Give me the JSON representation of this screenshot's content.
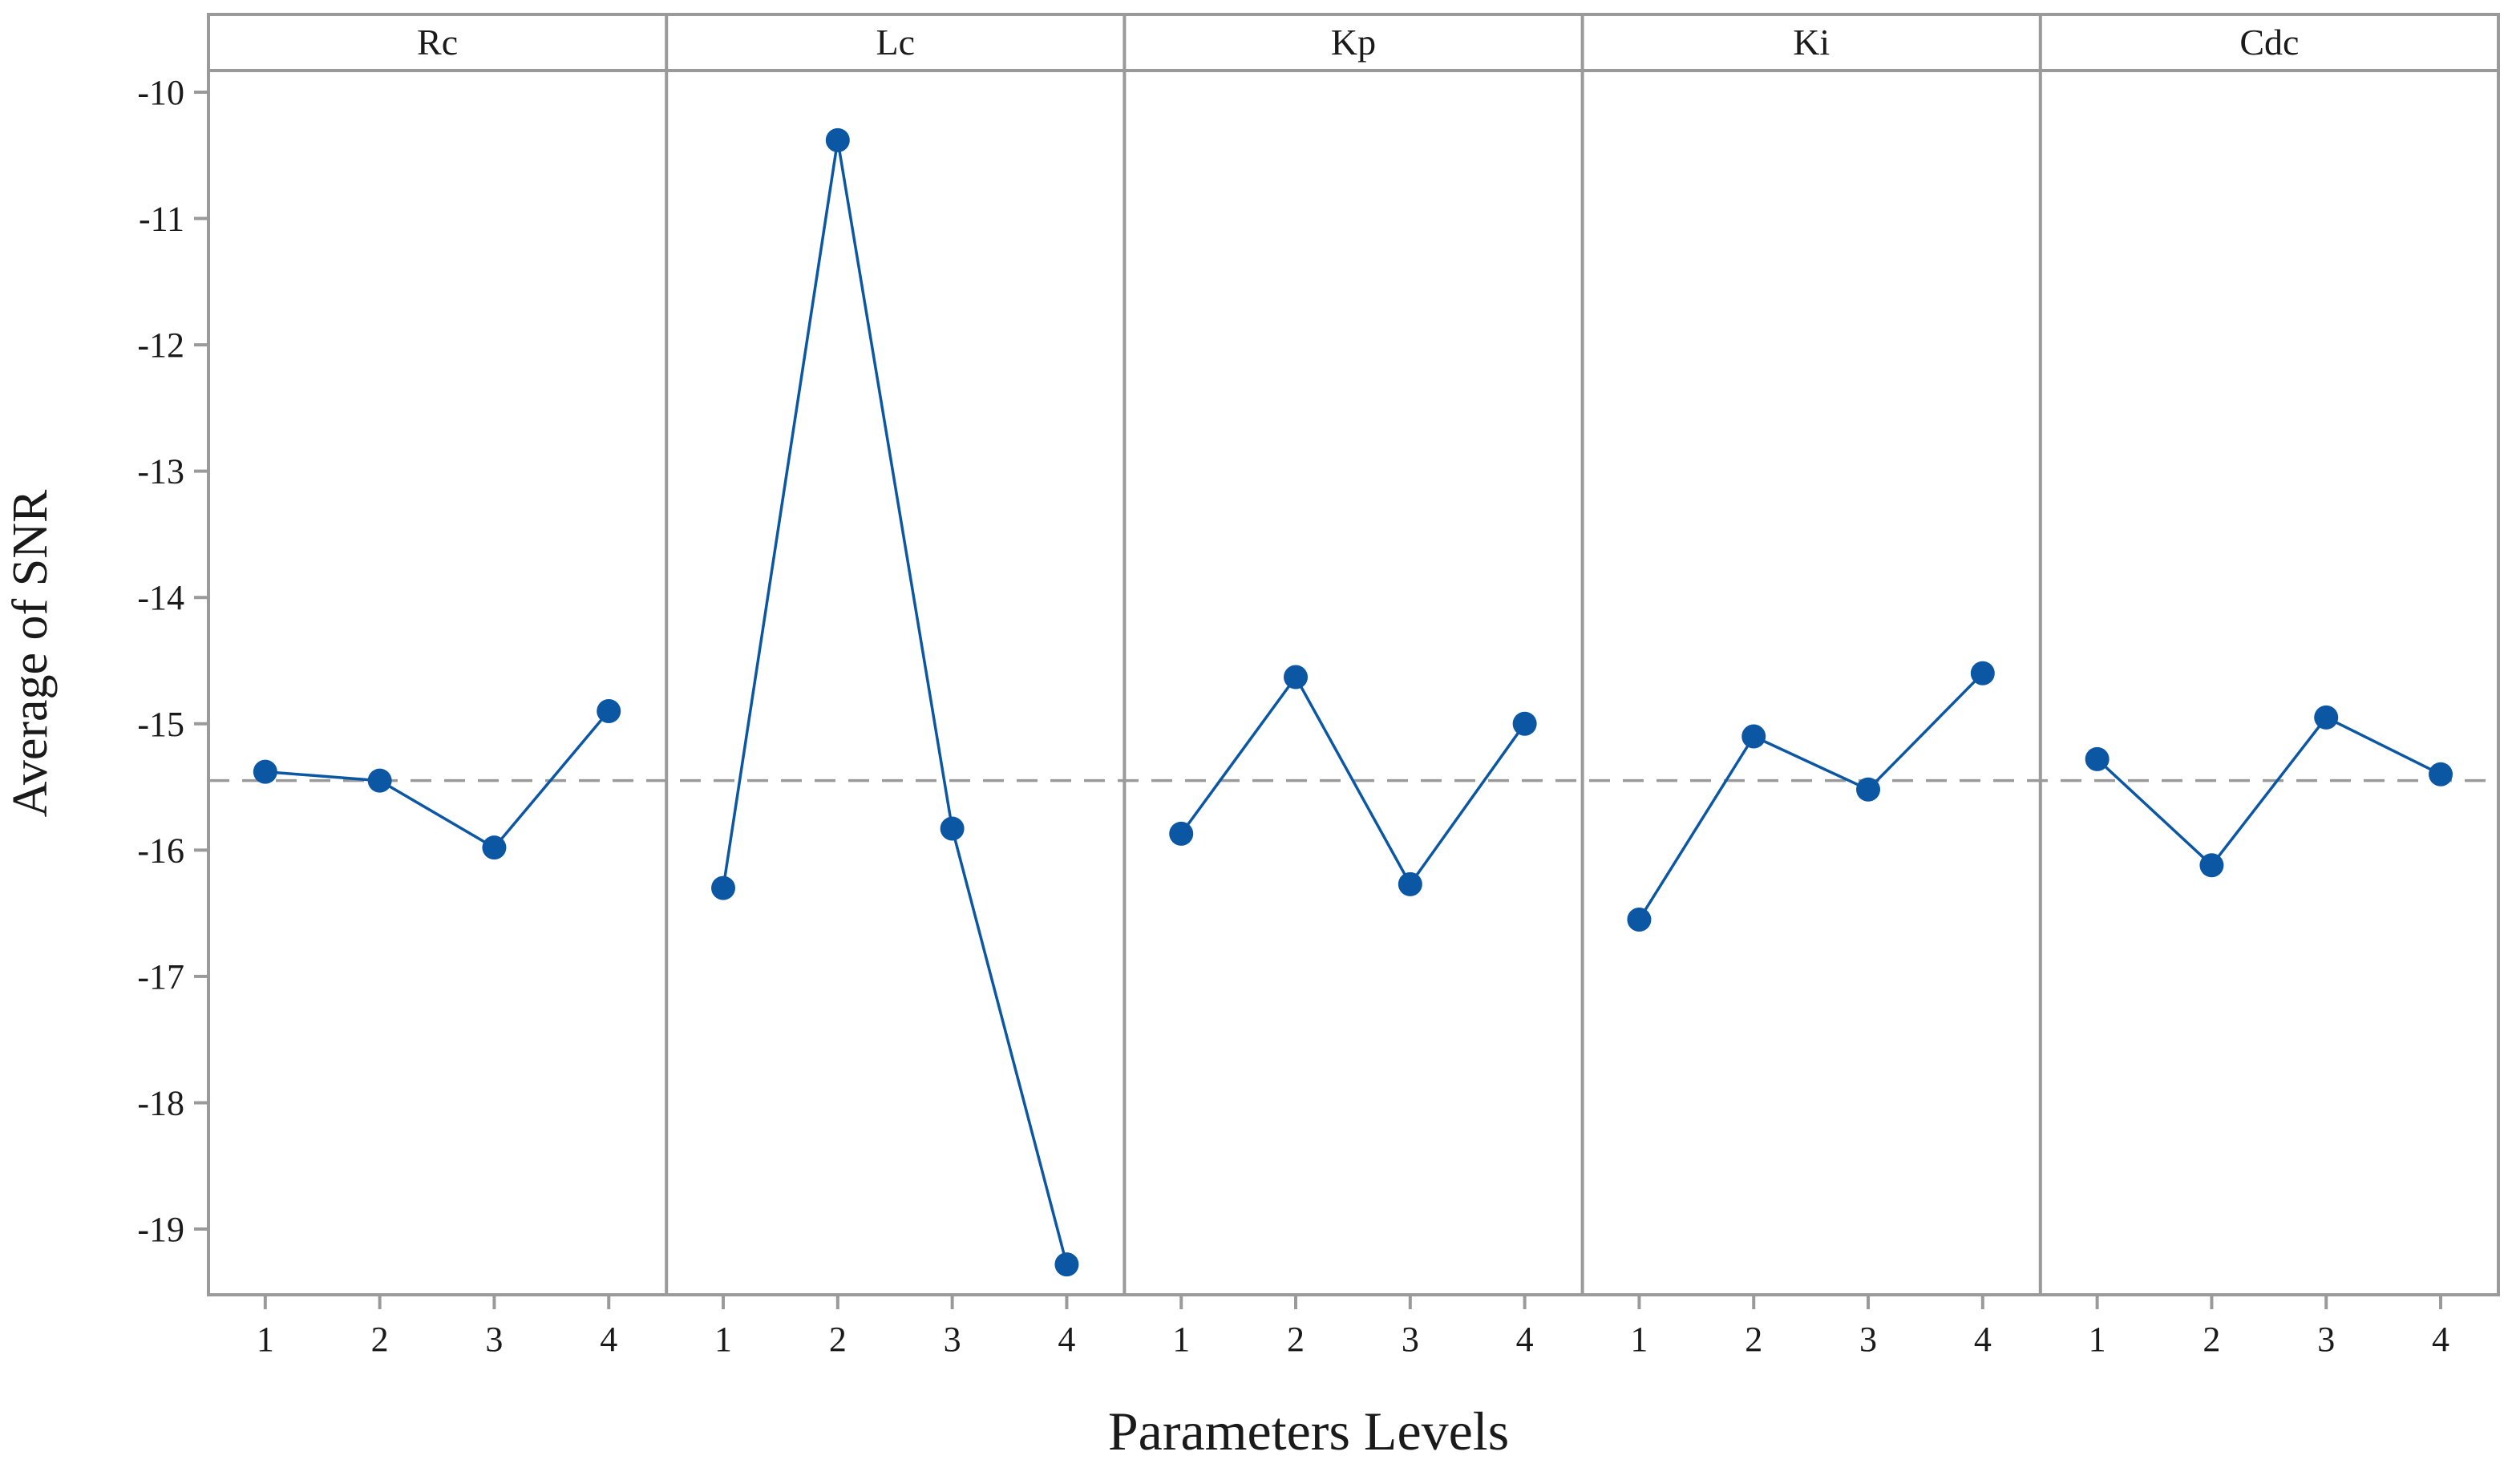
{
  "chart_data": {
    "type": "line",
    "ylabel": "Average of SNR",
    "xlabel": "Parameters Levels",
    "ylim": [
      -19.8,
      -9.8
    ],
    "y_ticks": [
      -10,
      -11,
      -12,
      -13,
      -14,
      -15,
      -16,
      -17,
      -18,
      -19
    ],
    "categories": [
      "1",
      "2",
      "3",
      "4"
    ],
    "reference_line": {
      "value": -15.45,
      "style": "dashed"
    },
    "grid": false,
    "colors": {
      "series": "#0B57A4",
      "panel_border": "#9a9a9a",
      "reference": "#9a9a9a",
      "text": "#1a1a1a"
    },
    "panels": [
      {
        "name": "Rc",
        "values": [
          -15.38,
          -15.45,
          -15.98,
          -14.9
        ]
      },
      {
        "name": "Lc",
        "values": [
          -16.3,
          -10.38,
          -15.83,
          -19.28
        ]
      },
      {
        "name": "Kp",
        "values": [
          -15.87,
          -14.63,
          -16.27,
          -15.0
        ]
      },
      {
        "name": "Ki",
        "values": [
          -16.55,
          -15.1,
          -15.52,
          -14.6
        ]
      },
      {
        "name": "Cdc",
        "values": [
          -15.28,
          -16.12,
          -14.95,
          -15.4
        ]
      }
    ]
  }
}
